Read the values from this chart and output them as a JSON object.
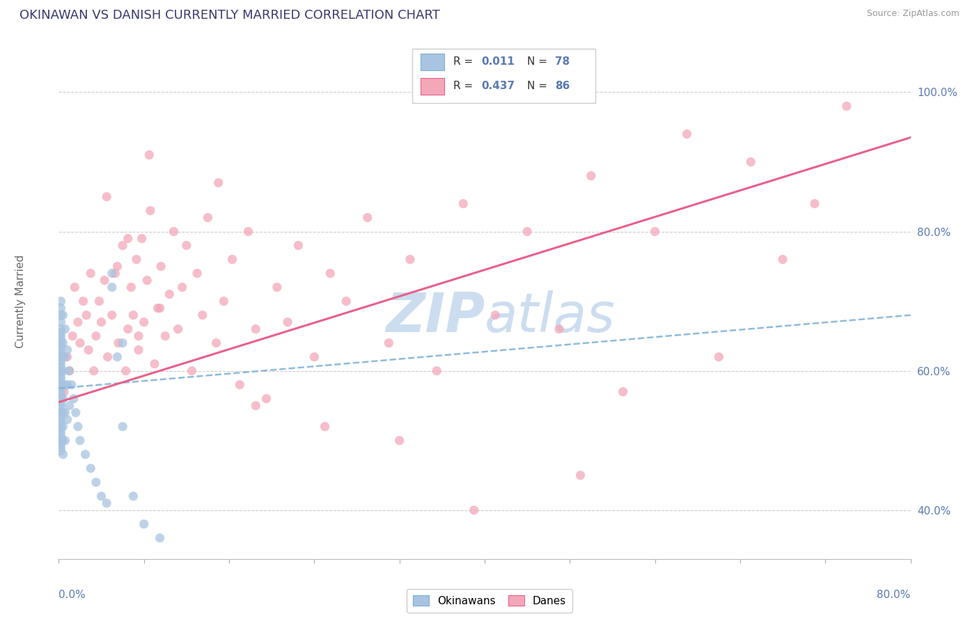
{
  "title": "OKINAWAN VS DANISH CURRENTLY MARRIED CORRELATION CHART",
  "source": "Source: ZipAtlas.com",
  "ylabel": "Currently Married",
  "y_ticks": [
    40.0,
    60.0,
    80.0,
    100.0
  ],
  "x_range": [
    0.0,
    0.8
  ],
  "y_range": [
    0.33,
    1.07
  ],
  "blue_color": "#a8c4e0",
  "pink_color": "#f4a7b9",
  "blue_line_color": "#7ab0d4",
  "pink_line_color": "#e8608a",
  "title_color": "#3a3a6e",
  "axis_label_color": "#5a7ab5",
  "watermark_color": "#ccddf0",
  "blue_points_x": [
    0.002,
    0.002,
    0.002,
    0.002,
    0.002,
    0.002,
    0.002,
    0.002,
    0.002,
    0.002,
    0.002,
    0.002,
    0.002,
    0.002,
    0.002,
    0.002,
    0.002,
    0.002,
    0.002,
    0.002,
    0.002,
    0.002,
    0.002,
    0.002,
    0.002,
    0.002,
    0.002,
    0.002,
    0.002,
    0.002,
    0.002,
    0.002,
    0.002,
    0.002,
    0.002,
    0.002,
    0.002,
    0.002,
    0.002,
    0.002,
    0.004,
    0.004,
    0.004,
    0.004,
    0.004,
    0.004,
    0.004,
    0.004,
    0.004,
    0.004,
    0.006,
    0.006,
    0.006,
    0.006,
    0.006,
    0.008,
    0.008,
    0.008,
    0.01,
    0.01,
    0.012,
    0.014,
    0.016,
    0.018,
    0.02,
    0.025,
    0.03,
    0.035,
    0.04,
    0.045,
    0.05,
    0.055,
    0.06,
    0.07,
    0.08,
    0.095,
    0.05,
    0.06
  ],
  "blue_points_y": [
    0.7,
    0.69,
    0.68,
    0.67,
    0.66,
    0.655,
    0.65,
    0.645,
    0.64,
    0.635,
    0.63,
    0.625,
    0.62,
    0.615,
    0.61,
    0.605,
    0.6,
    0.595,
    0.59,
    0.585,
    0.58,
    0.575,
    0.57,
    0.565,
    0.56,
    0.555,
    0.55,
    0.545,
    0.54,
    0.535,
    0.53,
    0.525,
    0.52,
    0.515,
    0.51,
    0.505,
    0.5,
    0.495,
    0.49,
    0.485,
    0.68,
    0.64,
    0.62,
    0.6,
    0.58,
    0.56,
    0.54,
    0.52,
    0.5,
    0.48,
    0.66,
    0.62,
    0.58,
    0.54,
    0.5,
    0.63,
    0.58,
    0.53,
    0.6,
    0.55,
    0.58,
    0.56,
    0.54,
    0.52,
    0.5,
    0.48,
    0.46,
    0.44,
    0.42,
    0.41,
    0.72,
    0.62,
    0.52,
    0.42,
    0.38,
    0.36,
    0.74,
    0.64
  ],
  "pink_points_x": [
    0.005,
    0.008,
    0.01,
    0.013,
    0.015,
    0.018,
    0.02,
    0.023,
    0.026,
    0.028,
    0.03,
    0.033,
    0.035,
    0.038,
    0.04,
    0.043,
    0.046,
    0.05,
    0.053,
    0.056,
    0.06,
    0.063,
    0.065,
    0.068,
    0.07,
    0.073,
    0.075,
    0.078,
    0.08,
    0.083,
    0.086,
    0.09,
    0.093,
    0.096,
    0.1,
    0.104,
    0.108,
    0.112,
    0.116,
    0.12,
    0.125,
    0.13,
    0.135,
    0.14,
    0.148,
    0.155,
    0.163,
    0.17,
    0.178,
    0.185,
    0.195,
    0.205,
    0.215,
    0.225,
    0.24,
    0.255,
    0.27,
    0.29,
    0.31,
    0.33,
    0.355,
    0.38,
    0.41,
    0.44,
    0.47,
    0.5,
    0.53,
    0.56,
    0.59,
    0.62,
    0.65,
    0.68,
    0.71,
    0.74,
    0.185,
    0.25,
    0.32,
    0.15,
    0.49,
    0.39,
    0.045,
    0.055,
    0.065,
    0.075,
    0.085,
    0.095
  ],
  "pink_points_y": [
    0.57,
    0.62,
    0.6,
    0.65,
    0.72,
    0.67,
    0.64,
    0.7,
    0.68,
    0.63,
    0.74,
    0.6,
    0.65,
    0.7,
    0.67,
    0.73,
    0.62,
    0.68,
    0.74,
    0.64,
    0.78,
    0.6,
    0.66,
    0.72,
    0.68,
    0.76,
    0.63,
    0.79,
    0.67,
    0.73,
    0.83,
    0.61,
    0.69,
    0.75,
    0.65,
    0.71,
    0.8,
    0.66,
    0.72,
    0.78,
    0.6,
    0.74,
    0.68,
    0.82,
    0.64,
    0.7,
    0.76,
    0.58,
    0.8,
    0.66,
    0.56,
    0.72,
    0.67,
    0.78,
    0.62,
    0.74,
    0.7,
    0.82,
    0.64,
    0.76,
    0.6,
    0.84,
    0.68,
    0.8,
    0.66,
    0.88,
    0.57,
    0.8,
    0.94,
    0.62,
    0.9,
    0.76,
    0.84,
    0.98,
    0.55,
    0.52,
    0.5,
    0.87,
    0.45,
    0.4,
    0.85,
    0.75,
    0.79,
    0.65,
    0.91,
    0.69
  ],
  "blue_trend_x0": 0.0,
  "blue_trend_y0": 0.575,
  "blue_trend_x1": 0.8,
  "blue_trend_y1": 0.68,
  "pink_trend_x0": 0.0,
  "pink_trend_y0": 0.555,
  "pink_trend_x1": 0.8,
  "pink_trend_y1": 0.935
}
